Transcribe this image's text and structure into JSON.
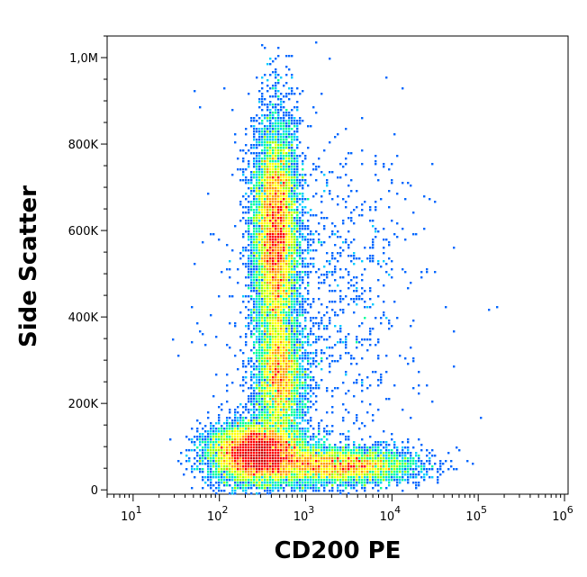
{
  "chart_data": {
    "type": "scatter",
    "title": "",
    "xlabel": "CD200 PE",
    "ylabel": "Side Scatter",
    "x_scale": "log",
    "xlim": [
      5,
      1100000
    ],
    "ylim": [
      -10000,
      1050000
    ],
    "x_ticks": [
      {
        "value": 10,
        "base": "10",
        "exp": "1"
      },
      {
        "value": 100,
        "base": "10",
        "exp": "2"
      },
      {
        "value": 1000,
        "base": "10",
        "exp": "3"
      },
      {
        "value": 10000,
        "base": "10",
        "exp": "4"
      },
      {
        "value": 100000,
        "base": "10",
        "exp": "5"
      },
      {
        "value": 1000000,
        "base": "10",
        "exp": "6"
      }
    ],
    "y_ticks": [
      {
        "value": 0,
        "label": "0"
      },
      {
        "value": 200000,
        "label": "200K"
      },
      {
        "value": 400000,
        "label": "400K"
      },
      {
        "value": 600000,
        "label": "600K"
      },
      {
        "value": 800000,
        "label": "800K"
      },
      {
        "value": 1000000,
        "label": "1,0M"
      }
    ],
    "colormap": [
      "#0000cc",
      "#0066ff",
      "#00ccff",
      "#00ff99",
      "#99ff00",
      "#ffff00",
      "#ff9900",
      "#ff0000",
      "#cc0000"
    ],
    "populations": [
      {
        "x_center": 280,
        "y_center": 85000,
        "x_spread_log": 0.28,
        "y_spread": 35000,
        "weight": 0.32
      },
      {
        "x_center": 450,
        "y_center": 590000,
        "x_spread_log": 0.13,
        "y_spread": 130000,
        "weight": 0.34
      },
      {
        "x_center": 500,
        "y_center": 260000,
        "x_spread_log": 0.14,
        "y_spread": 70000,
        "weight": 0.14
      },
      {
        "x_center": 2500,
        "y_center": 55000,
        "x_spread_log": 0.45,
        "y_spread": 22000,
        "weight": 0.16
      },
      {
        "x_center": 1500,
        "y_center": 450000,
        "x_spread_log": 0.55,
        "y_spread": 180000,
        "weight": 0.04
      }
    ]
  }
}
